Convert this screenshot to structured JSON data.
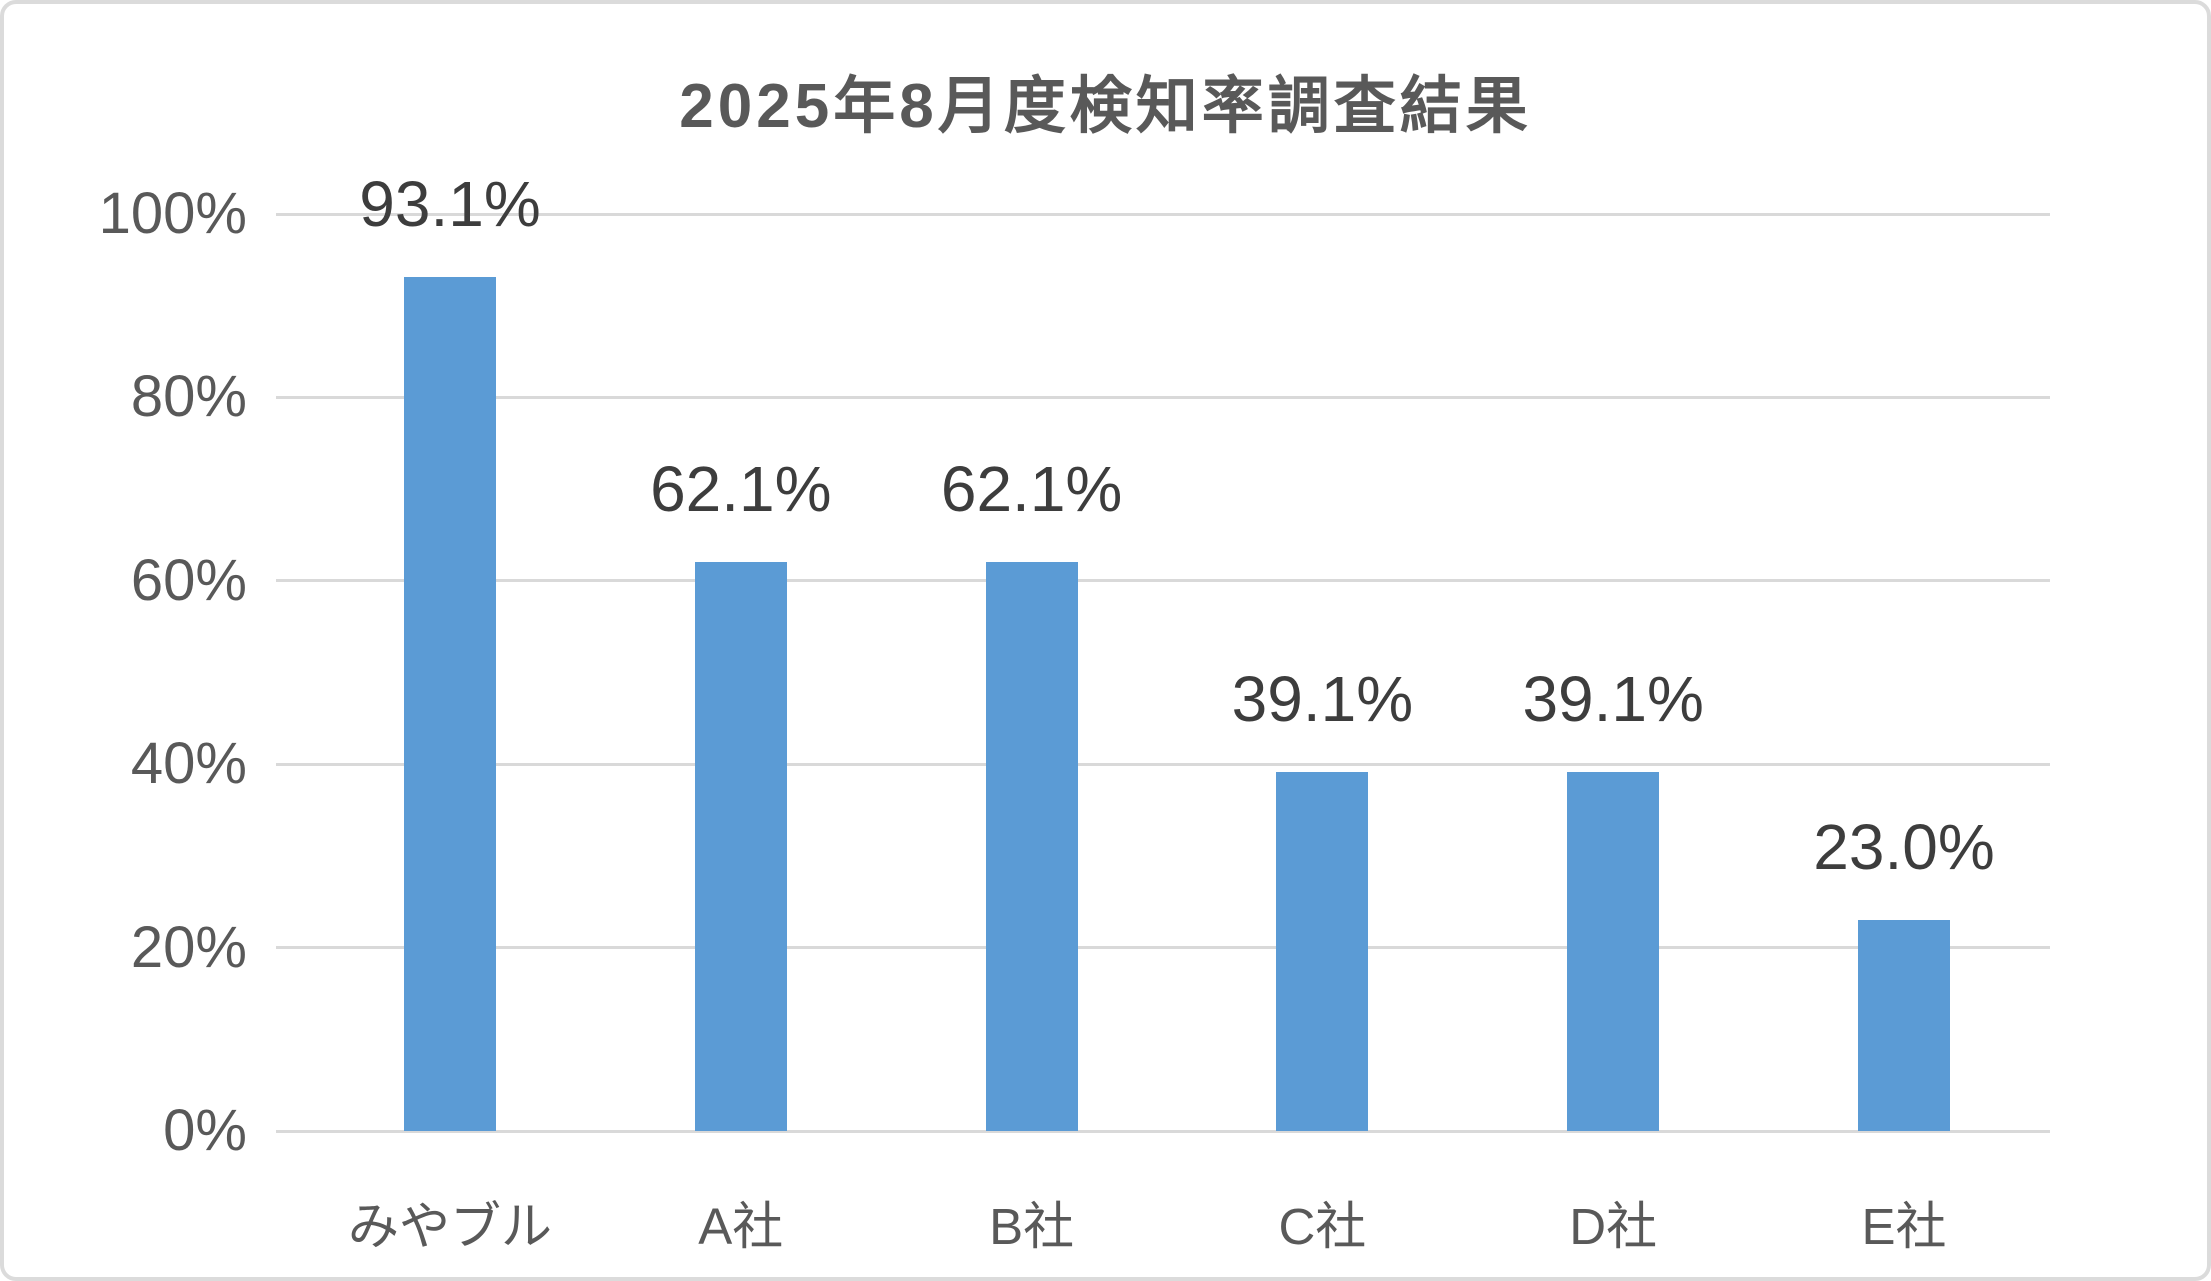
{
  "chart_data": {
    "type": "bar",
    "title": "2025年8月度検知率調査結果",
    "categories": [
      "みやブル",
      "A社",
      "B社",
      "C社",
      "D社",
      "E社"
    ],
    "values": [
      93.1,
      62.1,
      62.1,
      39.1,
      39.1,
      23.0
    ],
    "data_labels": [
      "93.1%",
      "62.1%",
      "62.1%",
      "39.1%",
      "39.1%",
      "23.0%"
    ],
    "series_name": "検知率",
    "xlabel": "",
    "ylabel": "",
    "ylim": [
      0,
      100
    ],
    "y_ticks": [
      {
        "value": 0,
        "label": "0%"
      },
      {
        "value": 20,
        "label": "20%"
      },
      {
        "value": 40,
        "label": "40%"
      },
      {
        "value": 60,
        "label": "60%"
      },
      {
        "value": 80,
        "label": "80%"
      },
      {
        "value": 100,
        "label": "100%"
      }
    ],
    "grid": true,
    "legend": "none",
    "colors": {
      "bar": "#5B9BD5",
      "gridline": "#D9D9D9",
      "baseline": "#D9D9D9",
      "title_text": "#595959",
      "axis_tick_text": "#595959",
      "category_text": "#595959",
      "data_label_text": "#3D3D3D",
      "canvas_border": "#DBDBDB",
      "background": "#FFFFFF"
    }
  }
}
